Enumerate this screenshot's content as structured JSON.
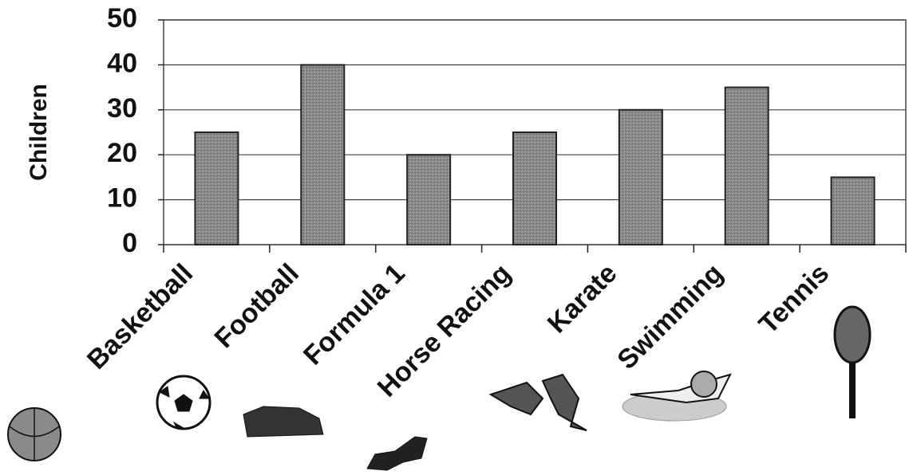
{
  "chart_data": {
    "type": "bar",
    "y_label": "Children",
    "categories": [
      "Basketball",
      "Football",
      "Formula 1",
      "Horse Racing",
      "Karate",
      "Swimming",
      "Tennis"
    ],
    "values": [
      25,
      40,
      20,
      25,
      30,
      35,
      15
    ],
    "color": "#8c8c8c",
    "ylim": [
      0,
      50
    ],
    "yticks": [
      0,
      10,
      20,
      30,
      40,
      50
    ],
    "grid": true
  }
}
